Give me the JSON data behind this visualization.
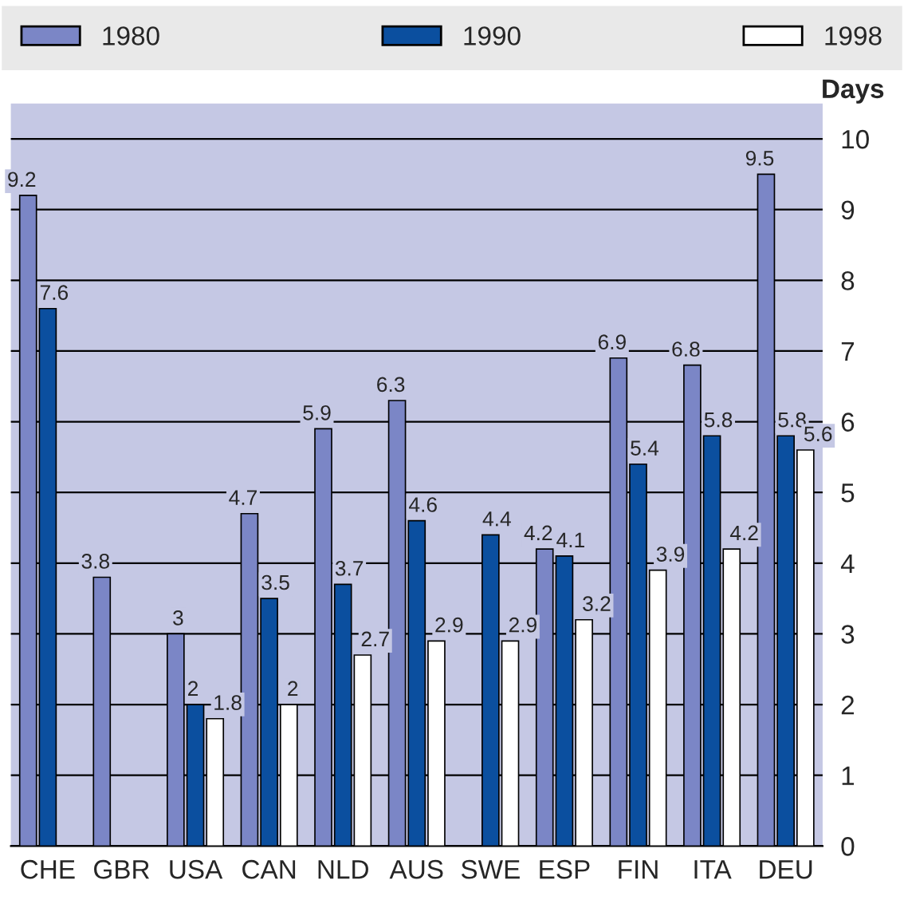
{
  "chart_data": {
    "type": "bar",
    "ylabel": "Days",
    "categories": [
      "CHE",
      "GBR",
      "USA",
      "CAN",
      "NLD",
      "AUS",
      "SWE",
      "ESP",
      "FIN",
      "ITA",
      "DEU"
    ],
    "series": [
      {
        "name": "1980",
        "color": "#7b86c6",
        "values": [
          9.2,
          3.8,
          3,
          4.7,
          5.9,
          6.3,
          null,
          4.2,
          6.9,
          6.8,
          9.5
        ]
      },
      {
        "name": "1990",
        "color": "#0b4f9f",
        "values": [
          7.6,
          null,
          2,
          3.5,
          3.7,
          4.6,
          4.4,
          4.1,
          5.4,
          5.8,
          5.8
        ]
      },
      {
        "name": "1998",
        "color": "#ffffff",
        "values": [
          null,
          null,
          1.8,
          2,
          2.7,
          2.9,
          2.9,
          3.2,
          3.9,
          4.2,
          5.6
        ]
      }
    ],
    "ylim": [
      0,
      10.5
    ],
    "yticks": [
      0,
      1,
      2,
      3,
      4,
      5,
      6,
      7,
      8,
      9,
      10
    ],
    "grid": "y",
    "legend": "top",
    "data_labels": true
  }
}
